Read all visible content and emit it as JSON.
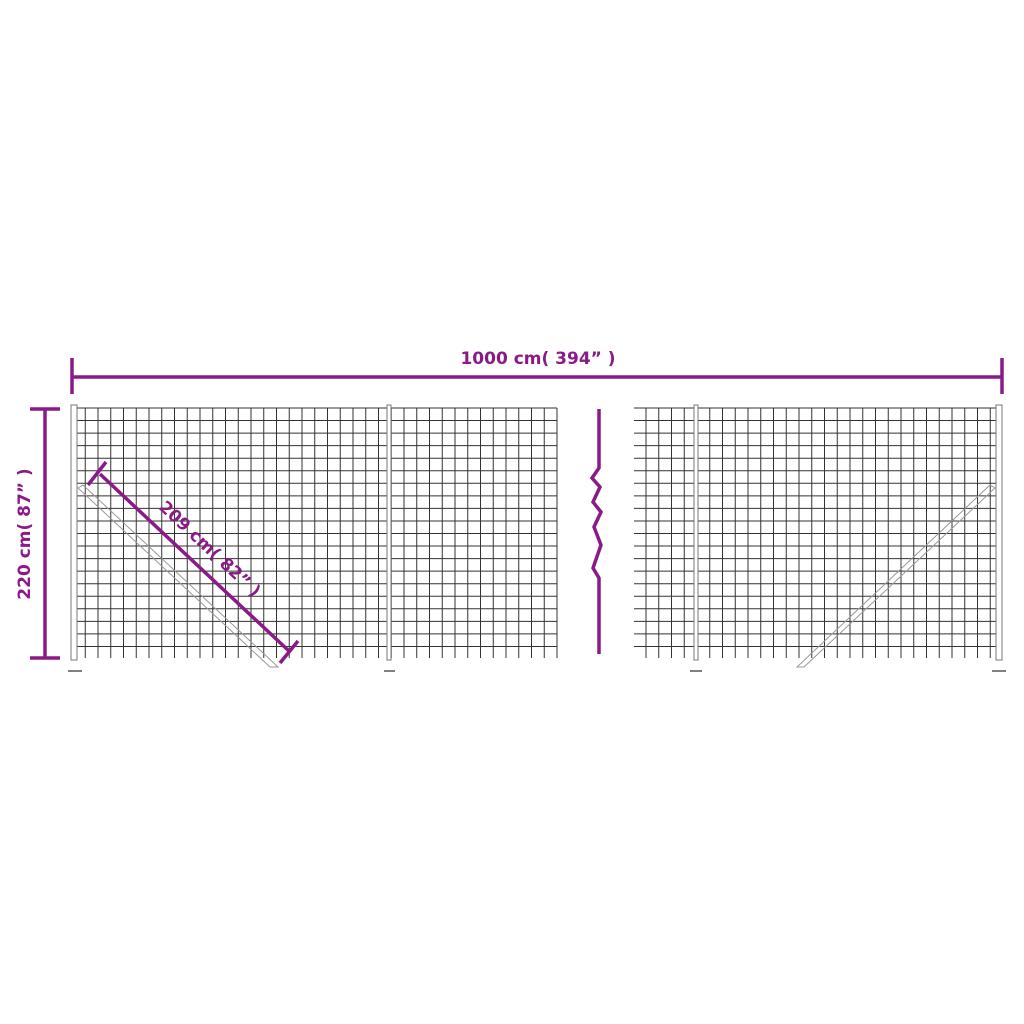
{
  "colors": {
    "dimension": "#8b1a89",
    "mesh": "#333333",
    "post": "#888888"
  },
  "dimensions": {
    "length": "1000 cm( 394”  )",
    "height": "220 cm( 87”  )",
    "brace": "209 cm( 82”  )"
  },
  "icons": {
    "break": "zigzag-break-symbol"
  }
}
